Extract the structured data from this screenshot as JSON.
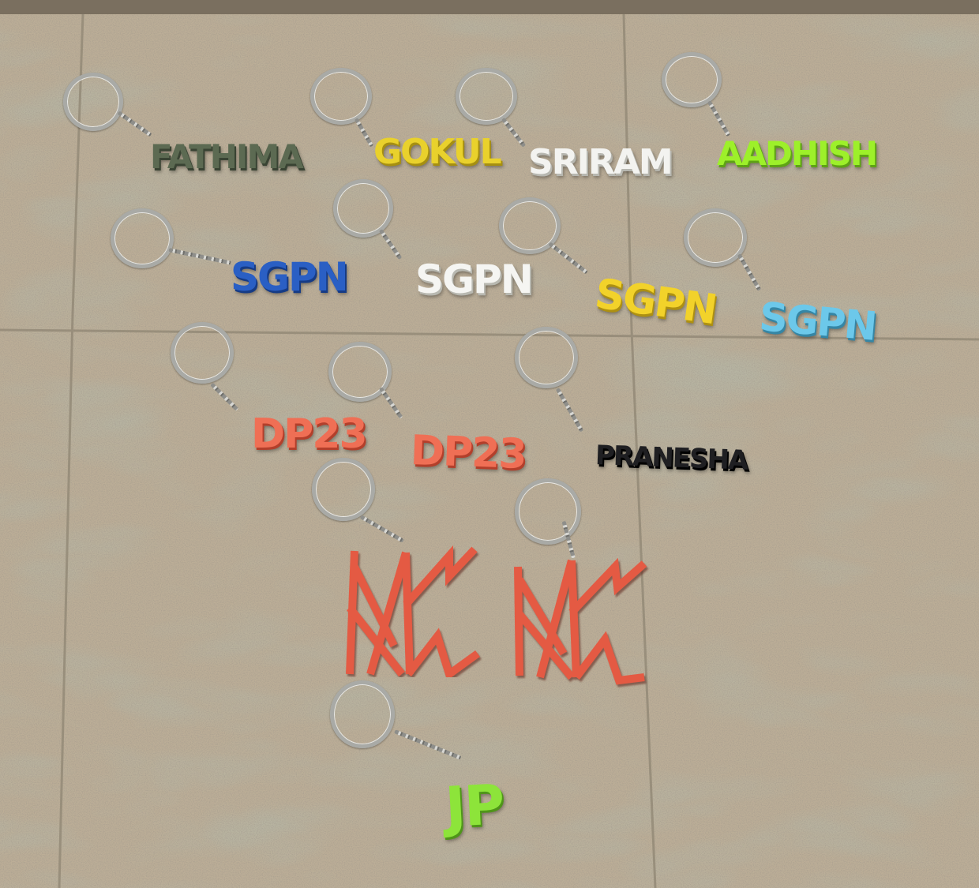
{
  "keychains": [
    {
      "text": "FATHIMA",
      "color": "#5c6a52",
      "shade": "#394333"
    },
    {
      "text": "GOKUL",
      "color": "#e9d12c",
      "shade": "#a68f11"
    },
    {
      "text": "SRIRAM",
      "color": "#f3f3f0",
      "shade": "#b7b7b0"
    },
    {
      "text": "AADHISH",
      "color": "#9df02a",
      "shade": "#5ea315"
    },
    {
      "text": "SGPN",
      "color": "#2a5fc4",
      "shade": "#163b85"
    },
    {
      "text": "SGPN",
      "color": "#f5f5f2",
      "shade": "#b8b8b0"
    },
    {
      "text": "SGPN",
      "color": "#f2d22a",
      "shade": "#ad9012"
    },
    {
      "text": "SGPN",
      "color": "#6cc8ea",
      "shade": "#3586a5"
    },
    {
      "text": "DP23",
      "color": "#ef6f55",
      "shade": "#b33f2b"
    },
    {
      "text": "DP23",
      "color": "#ef6f55",
      "shade": "#b33f2b"
    },
    {
      "text": "PRANESHA",
      "color": "#1f1f22",
      "shade": "#000000"
    },
    {
      "text": "JP",
      "color": "#8de43a",
      "shade": "#4f9519"
    }
  ],
  "monograms": [
    {
      "icon": "monogram-logo",
      "color": "#e45a43"
    },
    {
      "icon": "monogram-logo",
      "color": "#e45a43"
    }
  ]
}
